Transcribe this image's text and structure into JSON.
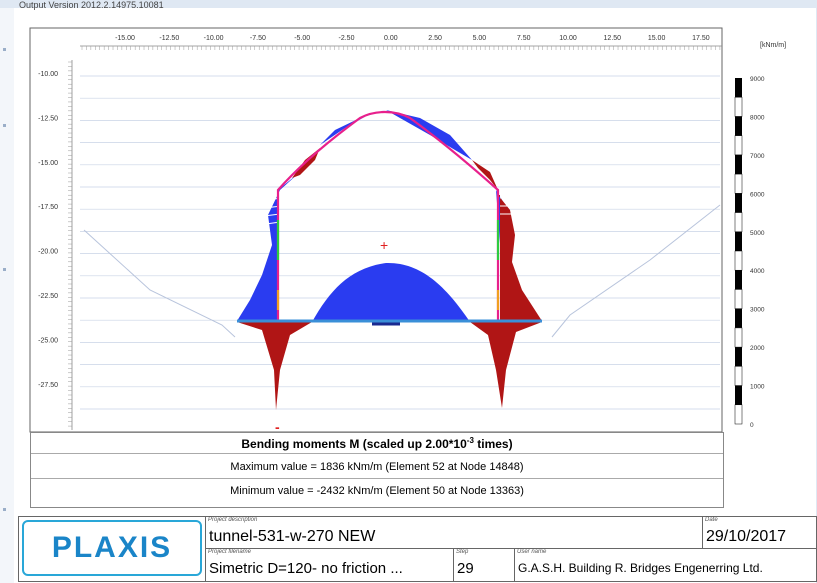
{
  "header": {
    "version_text": "Output Version 2012.2.14975.10081"
  },
  "axes": {
    "x_ticks": [
      "-15.00",
      "-12.50",
      "-10.00",
      "-7.50",
      "-5.00",
      "-2.50",
      "0.00",
      "2.50",
      "5.00",
      "7.50",
      "10.00",
      "12.50",
      "15.00",
      "17.50"
    ],
    "y_ticks": [
      "-10.00",
      "-12.50",
      "-15.00",
      "-17.50",
      "-20.00",
      "-22.50",
      "-25.00",
      "-27.50"
    ],
    "unit": "[kNm/m]"
  },
  "colorbar": {
    "ticks": [
      "9000",
      "8000",
      "7000",
      "6000",
      "5000",
      "4000",
      "3000",
      "2000",
      "1000",
      "0"
    ]
  },
  "caption": {
    "title_prefix": "Bending moments M (scaled up 2.00*10",
    "title_exp": "-3",
    "title_suffix": " times)",
    "max_text": "Maximum value = 1836 kNm/m (Element 52 at Node 14848)",
    "min_text": "Minimum value = -2432 kNm/m (Element 50 at Node 13363)"
  },
  "titleblock": {
    "logo": "PLAXIS",
    "project_description_label": "Project description",
    "project_description": "tunnel-531-w-270 NEW",
    "date_label": "Date",
    "date": "29/10/2017",
    "project_filename_label": "Project filename",
    "project_filename": "Simetric D=120- no friction ...",
    "step_label": "Step",
    "step": "29",
    "user_label": "User name",
    "user": "G.A.S.H. Building R. Bridges Engenerring Ltd."
  },
  "markers": {
    "plus": "+",
    "minus": "-"
  },
  "colors": {
    "positive": "#2a3cf0",
    "negative": "#b01515",
    "lining": "#e8208c",
    "accent": "#29a7d8"
  }
}
